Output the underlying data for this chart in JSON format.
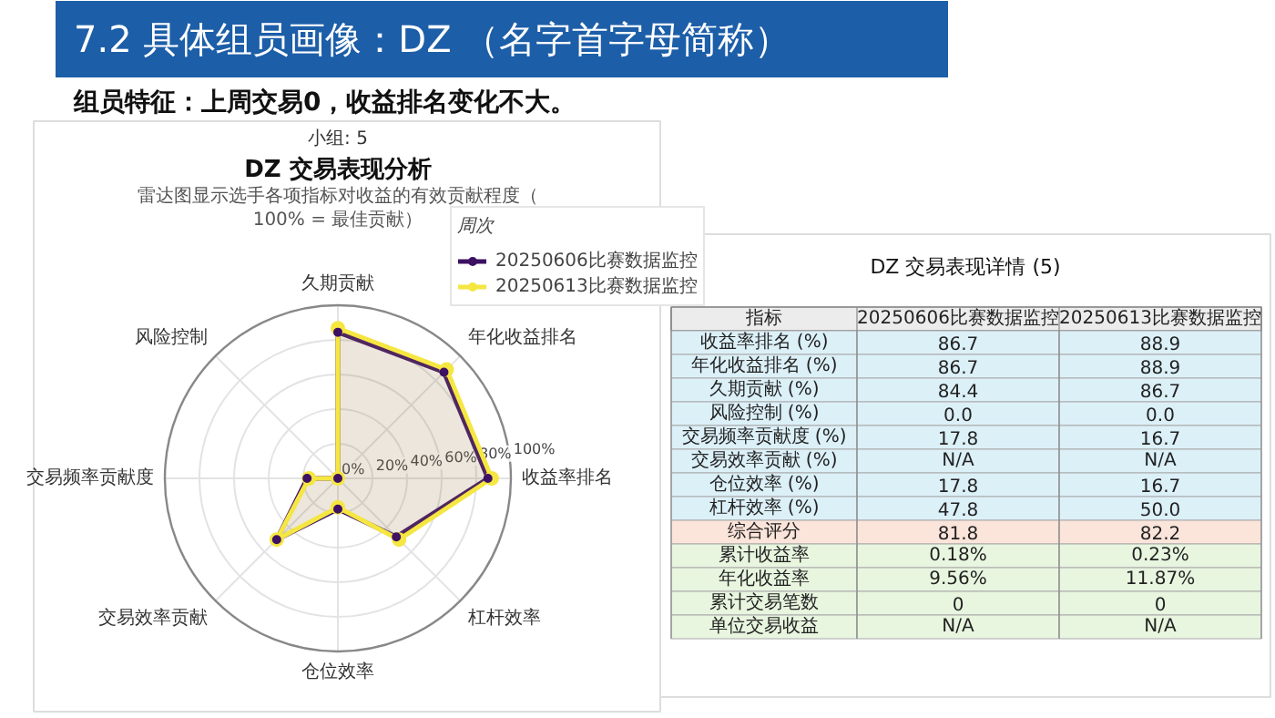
{
  "chart_data": [
    {
      "type": "radar",
      "title": "DZ 交易表现分析",
      "subtitle": "雷达图显示选手各项指标对收益的有效贡献程度（100% = 最佳贡献）",
      "annotations": [
        "7.2 具体组员画像：DZ （名字首字母简称）",
        "组员特征：上周交易0，收益排名变化不大。",
        "小组: 5"
      ],
      "categories": [
        "久期贡献",
        "年化收益排名",
        "收益率排名",
        "杠杆效率",
        "仓位效率",
        "交易效率贡献",
        "交易频率贡献度",
        "风险控制"
      ],
      "series": [
        {
          "name": "20250606比赛数据监控",
          "color": "#3d1163",
          "values": [
            84.4,
            86.7,
            86.7,
            47.8,
            17.8,
            50,
            17.8,
            0.0
          ]
        },
        {
          "name": "20250613比赛数据监控",
          "color": "#f5e641",
          "values": [
            86.7,
            88.9,
            88.9,
            50.0,
            16.7,
            50,
            16.7,
            0.0
          ]
        }
      ],
      "ylim": [
        0,
        100
      ],
      "yticks": [
        {
          "value": 0,
          "label": "0%"
        },
        {
          "value": 20,
          "label": "20%"
        },
        {
          "value": 40,
          "label": "40%"
        },
        {
          "value": 60,
          "label": "60%"
        },
        {
          "value": 80,
          "label": "80%"
        },
        {
          "value": 100,
          "label": "100%"
        }
      ],
      "legend_title": "周次",
      "legend": "top right",
      "grid": true,
      "marker": "circle"
    },
    {
      "type": "other",
      "title": "DZ 交易表现详情 (5)",
      "ylabel": "指标",
      "categories": [
        "收益率排名 (%)",
        "年化收益排名 (%)",
        "久期贡献 (%)",
        "风险控制 (%)",
        "交易频率贡献度 (%)",
        "交易效率贡献 (%)",
        "仓位效率 (%)",
        "杠杆效率 (%)",
        "综合评分",
        "累计收益率",
        "年化收益率",
        "累计交易笔数",
        "单位交易收益"
      ],
      "colors": [
        "#dcf0f8",
        "#dcf0f8",
        "#dcf0f8",
        "#dcf0f8",
        "#dcf0f8",
        "#dcf0f8",
        "#dcf0f8",
        "#dcf0f8",
        "#fbe4da",
        "#e8f5df",
        "#e8f5df",
        "#e8f5df",
        "#e8f5df"
      ],
      "series": [
        {
          "name": "20250606比赛数据监控",
          "colors": [
            "#dcf0f8",
            "#dcf0f8",
            "#dcf0f8",
            "#dcf0f8",
            "#dcf0f8",
            "#dcf0f8",
            "#dcf0f8",
            "#dcf0f8",
            "#fbe4da",
            "#e8f5df",
            "#e8f5df",
            "#e8f5df",
            "#e8f5df"
          ],
          "values": [
            86.7,
            86.7,
            84.4,
            0.0,
            17.8,
            null,
            17.8,
            47.8,
            81.8,
            0.18,
            9.56,
            0,
            null
          ],
          "value_labels": [
            "86.7",
            "86.7",
            "84.4",
            "0.0",
            "17.8",
            "N/A",
            "17.8",
            "47.8",
            "81.8",
            "0.18%",
            "9.56%",
            "0",
            "N/A"
          ]
        },
        {
          "name": "20250613比赛数据监控",
          "colors": [
            "#dcf0f8",
            "#dcf0f8",
            "#dcf0f8",
            "#dcf0f8",
            "#dcf0f8",
            "#dcf0f8",
            "#dcf0f8",
            "#dcf0f8",
            "#fbe4da",
            "#e8f5df",
            "#e8f5df",
            "#e8f5df",
            "#e8f5df"
          ],
          "values": [
            88.9,
            88.9,
            86.7,
            0.0,
            16.7,
            null,
            16.7,
            50.0,
            82.2,
            0.23,
            11.87,
            0,
            null
          ],
          "value_labels": [
            "88.9",
            "88.9",
            "86.7",
            "0.0",
            "16.7",
            "N/A",
            "16.7",
            "50.0",
            "82.2",
            "0.23%",
            "11.87%",
            "0",
            "N/A"
          ]
        }
      ]
    }
  ]
}
